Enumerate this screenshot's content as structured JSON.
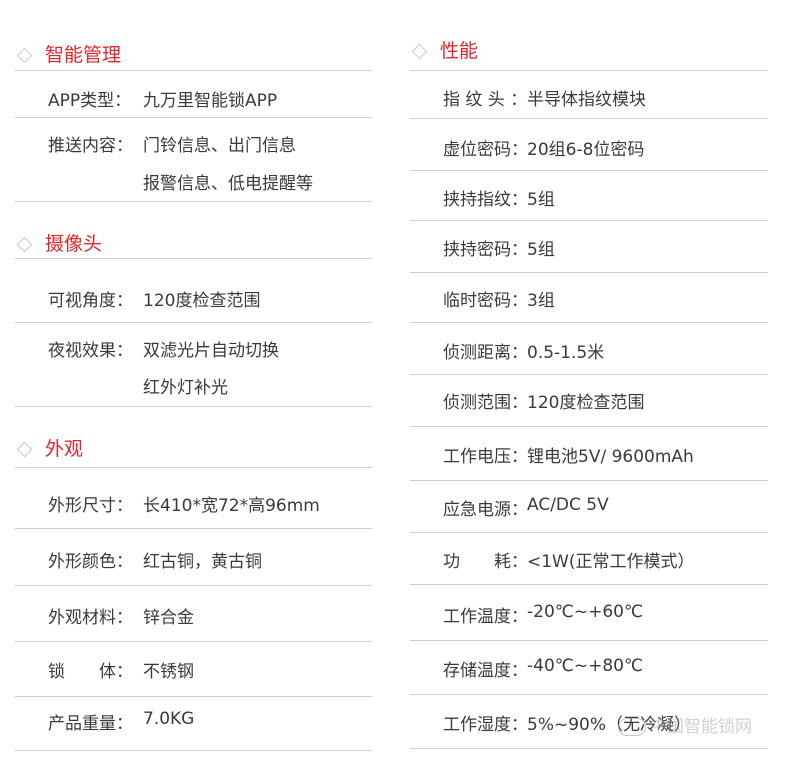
{
  "left": {
    "sections": [
      {
        "title": "智能管理",
        "rows": [
          {
            "label": "APP类型：",
            "value": "九万里智能锁APP"
          },
          {
            "label": "推送内容：",
            "value": "门铃信息、出门信息",
            "value2": "报警信息、低电提醒等"
          }
        ]
      },
      {
        "title": "摄像头",
        "rows": [
          {
            "label": "可视角度：",
            "value": "120度检查范围"
          },
          {
            "label": "夜视效果：",
            "value": "双滤光片自动切换",
            "value2": "红外灯补光"
          }
        ]
      },
      {
        "title": "外观",
        "rows": [
          {
            "label": "外形尺寸：",
            "value": "长410*宽72*高96mm"
          },
          {
            "label": "外形颜色：",
            "value": "红古铜，黄古铜"
          },
          {
            "label": "外观材料：",
            "value": "锌合金"
          },
          {
            "label": "锁　　体：",
            "value": "不锈钢"
          },
          {
            "label": "产品重量：",
            "value": "7.0KG"
          }
        ]
      }
    ]
  },
  "right": {
    "sections": [
      {
        "title": "性能",
        "rows": [
          {
            "label": "指 纹 头 ：",
            "value": "半导体指纹模块"
          },
          {
            "label": "虚位密码：",
            "value": "20组6-8位密码"
          },
          {
            "label": "挟持指纹：",
            "value": "5组"
          },
          {
            "label": "挟持密码：",
            "value": "5组"
          },
          {
            "label": "临时密码：",
            "value": "3组"
          },
          {
            "label": "侦测距离：",
            "value": "0.5-1.5米"
          },
          {
            "label": "侦测范围：",
            "value": "120度检查范围"
          },
          {
            "label": "工作电压：",
            "value": "锂电池5V/  9600mAh"
          },
          {
            "label": "应急电源：",
            "value": "AC/DC 5V"
          },
          {
            "label": "功　　耗：",
            "value": "<1W(正常工作模式）"
          },
          {
            "label": "工作温度：",
            "value": "-20℃~+60℃"
          },
          {
            "label": "存储温度：",
            "value": "-40℃~+80℃"
          },
          {
            "label": "工作湿度：",
            "value": "5%~90%（无冷凝）"
          }
        ]
      }
    ]
  },
  "watermark": "中国智能锁网",
  "colors": {
    "heading": "#e4262c",
    "text": "#3a3a3a",
    "divider": "#cfcfcf"
  }
}
